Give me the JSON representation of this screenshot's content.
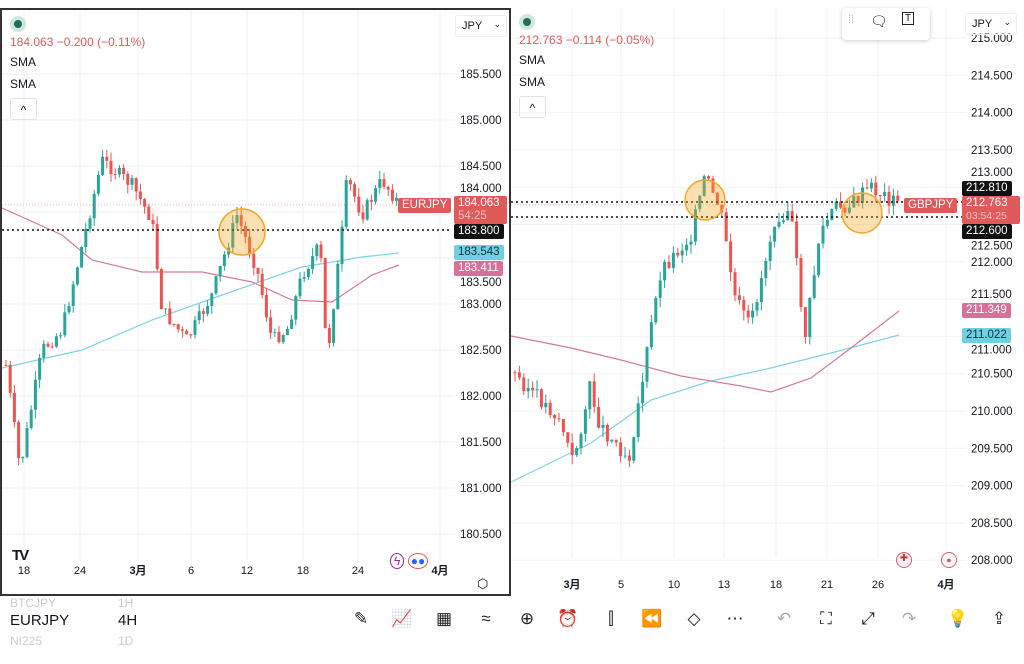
{
  "left": {
    "symbol": "EURJPY",
    "price_line": "184.063  −0.200 (−0.11%)",
    "sma1": "SMA",
    "sma2": "SMA",
    "collapse": "^",
    "currency": "JPY",
    "y_ticks": [
      "185.500",
      "185.000",
      "184.500",
      "184.000",
      "183.500",
      "183.000",
      "182.500",
      "182.000",
      "181.500",
      "181.000",
      "180.500"
    ],
    "x_ticks": [
      "18",
      "24",
      "3月",
      "6",
      "12",
      "18",
      "24",
      "4月"
    ],
    "tags": {
      "price": "184.063",
      "countdown": "54:25",
      "level": "183.800",
      "sma_blue": "183.543",
      "sma_pink": "183.411"
    },
    "logo": "TV"
  },
  "right": {
    "symbol": "GBPJPY",
    "price_line": "212.763  −0.114 (−0.05%)",
    "sma1": "SMA",
    "sma2": "SMA",
    "collapse": "^",
    "currency": "JPY",
    "y_ticks": [
      "215.000",
      "214.500",
      "214.000",
      "213.500",
      "213.000",
      "212.500",
      "212.000",
      "211.500",
      "211.000",
      "210.500",
      "210.000",
      "209.500",
      "209.000",
      "208.500",
      "208.000"
    ],
    "x_ticks": [
      "3月",
      "5",
      "10",
      "13",
      "18",
      "21",
      "26",
      "4月"
    ],
    "tags": {
      "high": "212.810",
      "price": "212.763",
      "countdown": "03:54:25",
      "level": "212.600",
      "sma_pink": "211.349",
      "sma_blue": "211.022"
    }
  },
  "watchlist": [
    {
      "symbol": "BTCJPY",
      "tf": "1H"
    },
    {
      "symbol": "EURJPY",
      "tf": "4H"
    },
    {
      "symbol": "NI225",
      "tf": "1D"
    }
  ],
  "colors": {
    "up": "#26a69a",
    "down": "#ef5350",
    "sma_blue": "#7fd3e6",
    "sma_pink": "#d77a9a",
    "highlight": "#f5a623"
  }
}
